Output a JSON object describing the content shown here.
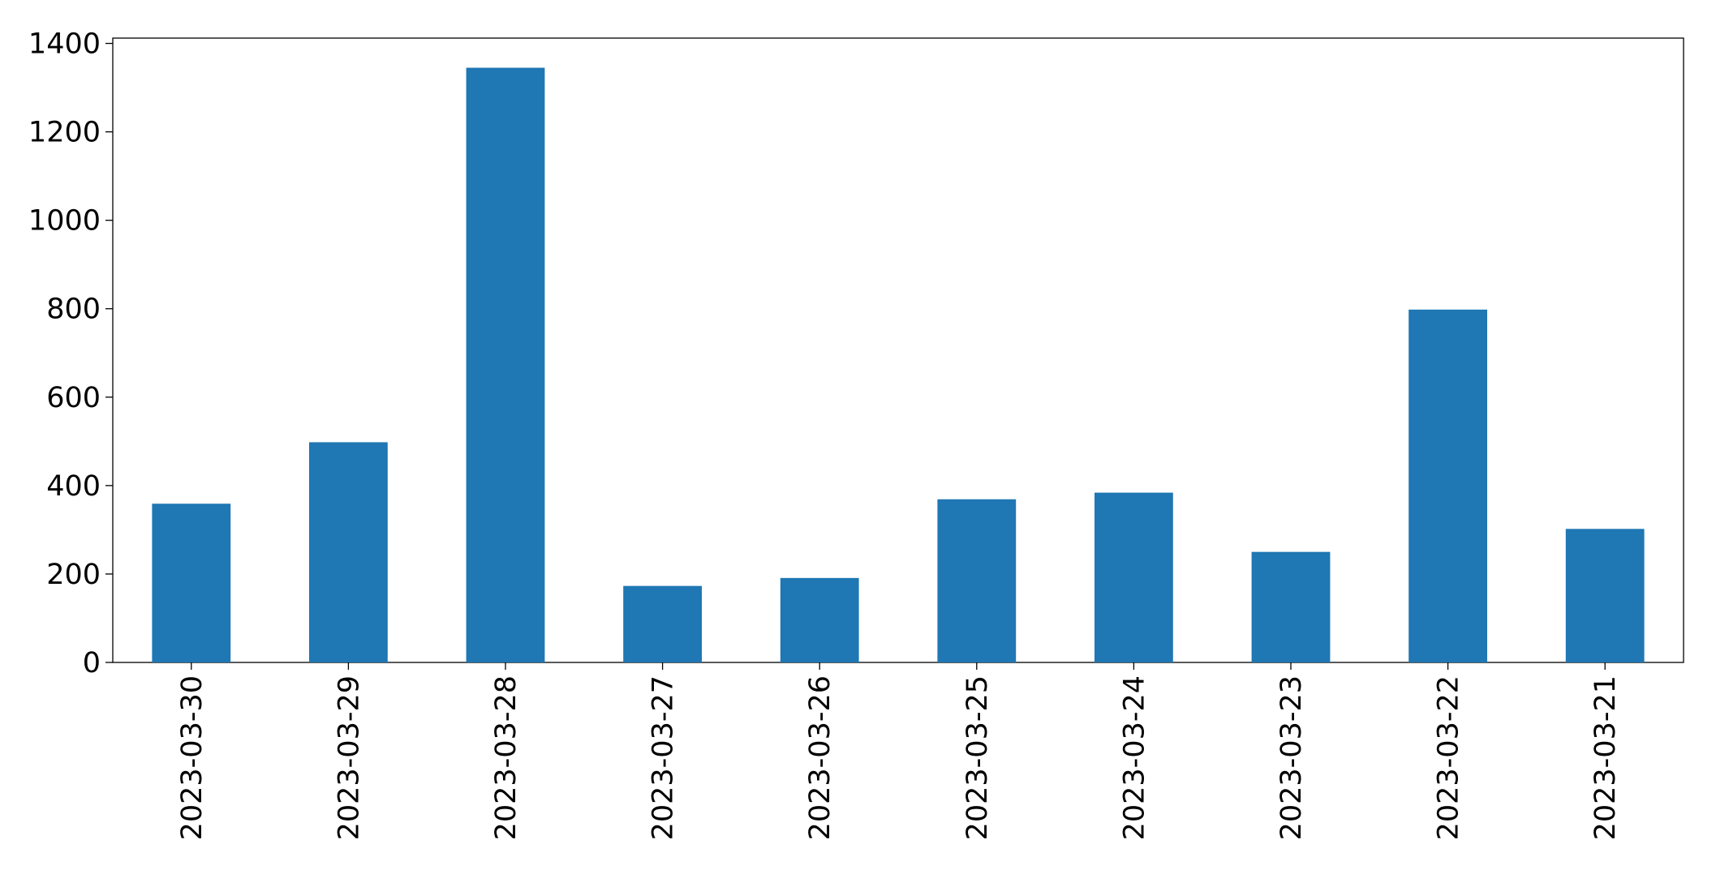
{
  "chart_data": {
    "type": "bar",
    "categories": [
      "2023-03-30",
      "2023-03-29",
      "2023-03-28",
      "2023-03-27",
      "2023-03-26",
      "2023-03-25",
      "2023-03-24",
      "2023-03-23",
      "2023-03-22",
      "2023-03-21"
    ],
    "values": [
      359,
      498,
      1345,
      173,
      191,
      369,
      384,
      250,
      798,
      302
    ],
    "color": "#1f77b4",
    "ylim": [
      0,
      1412
    ],
    "yticks": [
      0,
      200,
      400,
      600,
      800,
      1000,
      1200,
      1400
    ],
    "grid": false
  }
}
